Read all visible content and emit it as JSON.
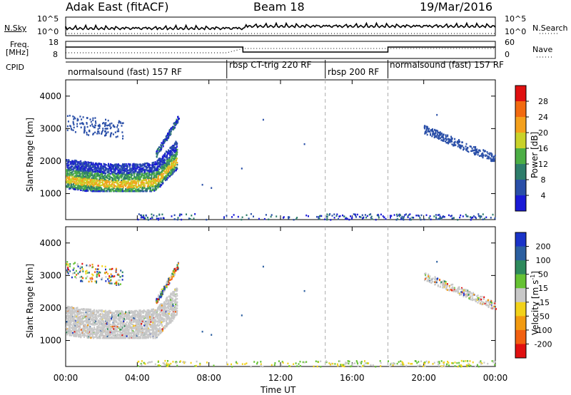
{
  "header": {
    "site": "Adak East (fitACF)",
    "beam": "Beam 18",
    "date": "19/Mar/2016"
  },
  "side_labels": {
    "nsky": "N.Sky",
    "freq": "Freq.",
    "freq_unit": "[MHz]",
    "cpid": "CPID",
    "nsearch": "N.Search",
    "nave": "Nave",
    "nsky_ticks": [
      "10^5",
      "10^0"
    ],
    "freq_ticks": [
      "18",
      "8"
    ],
    "nave_ticks": [
      "60",
      "0"
    ]
  },
  "cpid_segments": [
    {
      "label": "normalsound (fast) 157 RF",
      "start_h": 0.0,
      "end_h": 9.0
    },
    {
      "label": "rbsp CT-trig 220 RF",
      "start_h": 9.0,
      "end_h": 14.5
    },
    {
      "label": "rbsp 200 RF",
      "start_h": 14.5,
      "end_h": 18.0
    },
    {
      "label": "normalsound (fast) 157 RF",
      "start_h": 18.0,
      "end_h": 24.0
    }
  ],
  "chart_data": [
    {
      "type": "heatmap",
      "panel": "power",
      "xlabel": "Time UT",
      "ylabel": "Slant Range [km]",
      "x_ticks": [
        "00:00",
        "04:00",
        "08:00",
        "12:00",
        "16:00",
        "20:00",
        "00:00"
      ],
      "x_range_hours": [
        0,
        24
      ],
      "y_ticks": [
        1000,
        2000,
        3000,
        4000
      ],
      "y_range_km": [
        200,
        4500
      ],
      "colorbar": {
        "label": "Power [dB]",
        "ticks": [
          4,
          8,
          12,
          16,
          20,
          24,
          28
        ],
        "colors": [
          "#1a1ad6",
          "#2a4fa8",
          "#2e7d6b",
          "#4cae45",
          "#c9d22a",
          "#f4a01c",
          "#f26a10",
          "#e01010"
        ]
      },
      "scatter_regions": [
        {
          "t0": 0.0,
          "t1": 6.2,
          "r0": 1200,
          "r1": 2200,
          "level": "band_high"
        },
        {
          "t0": 0.0,
          "t1": 3.0,
          "r0": 2900,
          "r1": 3500,
          "level": "low"
        },
        {
          "t0": 20.0,
          "t1": 24.0,
          "r0": 2000,
          "r1": 3100,
          "level": "low"
        },
        {
          "t0": 0.0,
          "t1": 24.0,
          "r0": 200,
          "r1": 400,
          "level": "sparse"
        }
      ]
    },
    {
      "type": "heatmap",
      "panel": "velocity",
      "xlabel": "Time UT",
      "ylabel": "Slant Range [km]",
      "x_ticks": [
        "00:00",
        "04:00",
        "08:00",
        "12:00",
        "16:00",
        "20:00",
        "00:00"
      ],
      "x_range_hours": [
        0,
        24
      ],
      "y_ticks": [
        1000,
        2000,
        3000,
        4000
      ],
      "y_range_km": [
        200,
        4500
      ],
      "colorbar": {
        "label": "Velocity [m s^-1]",
        "ticks": [
          200,
          100,
          50,
          15,
          -15,
          -50,
          -100,
          -200
        ],
        "colors": [
          "#1a33c8",
          "#2b5fa0",
          "#2e8a5c",
          "#66c233",
          "#c8c8c8",
          "#f2d21a",
          "#f29a10",
          "#f26010",
          "#e01010"
        ]
      }
    }
  ]
}
